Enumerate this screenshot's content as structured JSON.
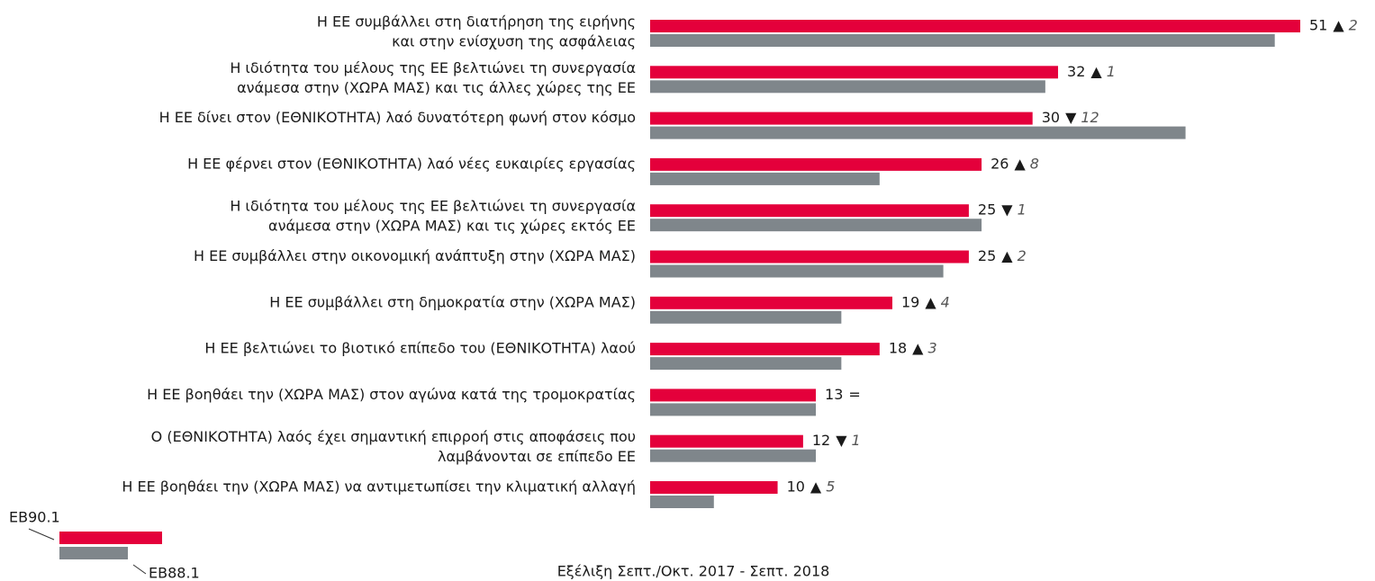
{
  "chart_data": {
    "type": "bar",
    "categories": [
      [
        "Η ΕΕ συμβάλλει στη διατήρηση της ειρήνης",
        "και στην ενίσχυση της ασφάλειας"
      ],
      [
        "Η ιδιότητα του μέλους της ΕΕ βελτιώνει τη συνεργασία",
        "ανάμεσα στην (ΧΩΡΑ ΜΑΣ) και τις άλλες χώρες της ΕΕ"
      ],
      [
        "Η ΕΕ δίνει στον (ΕΘΝΙΚΟΤΗΤΑ) λαό δυνατότερη φωνή στον κόσμο"
      ],
      [
        "Η ΕΕ φέρνει στον (ΕΘΝΙΚΟΤΗΤΑ) λαό νέες ευκαιρίες εργασίας"
      ],
      [
        "Η ιδιότητα του μέλους της ΕΕ βελτιώνει τη συνεργασία",
        "ανάμεσα στην (ΧΩΡΑ ΜΑΣ) και τις χώρες εκτός ΕΕ"
      ],
      [
        "Η ΕΕ συμβάλλει στην οικονομική ανάπτυξη στην (ΧΩΡΑ ΜΑΣ)"
      ],
      [
        "Η ΕΕ συμβάλλει στη δημοκρατία στην (ΧΩΡΑ ΜΑΣ)"
      ],
      [
        "Η ΕΕ βελτιώνει το βιοτικό επίπεδο του (ΕΘΝΙΚΟΤΗΤΑ) λαού"
      ],
      [
        "Η ΕΕ βοηθάει την (ΧΩΡΑ ΜΑΣ) στον αγώνα κατά της τρομοκρατίας"
      ],
      [
        "Ο (ΕΘΝΙΚΟΤΗΤΑ) λαός έχει σημαντική επιρροή στις αποφάσεις που",
        "λαμβάνονται σε επίπεδο ΕΕ"
      ],
      [
        "Η ΕΕ βοηθάει την (ΧΩΡΑ ΜΑΣ) να αντιμετωπίσει την κλιματική αλλαγή"
      ]
    ],
    "series": [
      {
        "name": "EB90.1",
        "color": "#e4003b",
        "values": [
          51,
          32,
          30,
          26,
          25,
          25,
          19,
          18,
          13,
          12,
          10
        ]
      },
      {
        "name": "EB88.1",
        "color": "#7f868b",
        "values": [
          49,
          31,
          42,
          18,
          26,
          23,
          15,
          15,
          13,
          13,
          5
        ]
      }
    ],
    "change_symbols": [
      "▲",
      "▲",
      "▼",
      "▲",
      "▼",
      "▲",
      "▲",
      "▲",
      "=",
      "▼",
      "▲"
    ],
    "change_values": [
      2,
      1,
      12,
      8,
      1,
      2,
      4,
      3,
      null,
      1,
      5
    ],
    "note": "Εξέλιξη Σεπτ./Οκτ. 2017 - Σεπτ. 2018"
  }
}
